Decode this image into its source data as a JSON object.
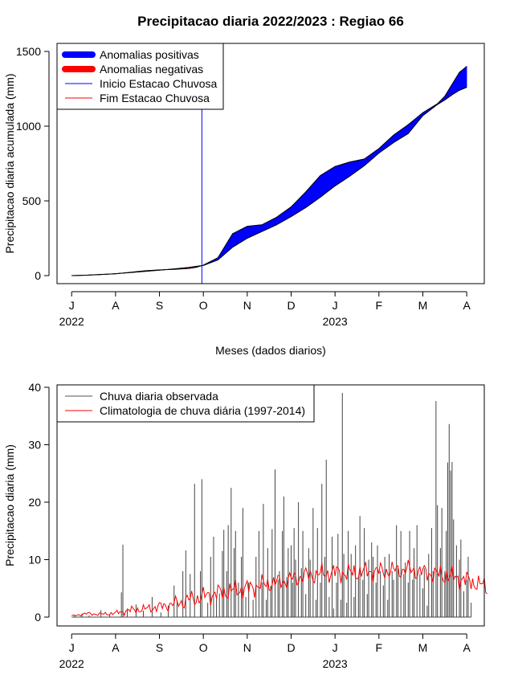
{
  "title": "Precipitacao diaria 2022/2023 : Regiao 66",
  "chart_data": [
    {
      "type": "area",
      "ylabel": "Precipitacao diaria acumulada (mm)",
      "xlabel": "Meses (dados diarios)",
      "x_ticks": [
        "J",
        "A",
        "S",
        "O",
        "N",
        "D",
        "J",
        "F",
        "M",
        "A"
      ],
      "year_labels": [
        "2022",
        "2023"
      ],
      "ylim": [
        0,
        1550
      ],
      "y_ticks": [
        0,
        500,
        1000,
        1500
      ],
      "legend_position": "top-left",
      "legend": [
        {
          "label": "Anomalias positivas",
          "color": "#0000ff",
          "style": "thick"
        },
        {
          "label": "Anomalias negativas",
          "color": "#ff0000",
          "style": "thick"
        },
        {
          "label": "Inicio Estacao Chuvosa",
          "color": "#0000ff",
          "style": "thin"
        },
        {
          "label": "Fim Estacao Chuvosa",
          "color": "#ff0000",
          "style": "thin"
        }
      ],
      "month_x": [
        0,
        30,
        60,
        90,
        120,
        150,
        180,
        210,
        240,
        270
      ],
      "rainy_season_start_day": 89,
      "series": [
        {
          "x": [
            0,
            10,
            20,
            30,
            40,
            50,
            60,
            70,
            80,
            85,
            90,
            100,
            110,
            120,
            130,
            140,
            150,
            160,
            170,
            180,
            190,
            200,
            210,
            220,
            230,
            240,
            250,
            255,
            260,
            265,
            270
          ],
          "observed": [
            0,
            3,
            8,
            12,
            22,
            32,
            38,
            42,
            48,
            55,
            70,
            120,
            280,
            330,
            340,
            390,
            460,
            560,
            670,
            730,
            760,
            780,
            850,
            940,
            1010,
            1090,
            1150,
            1200,
            1280,
            1360,
            1400
          ],
          "climatology": [
            0,
            3,
            7,
            13,
            20,
            28,
            36,
            45,
            55,
            62,
            68,
            105,
            190,
            250,
            295,
            340,
            395,
            455,
            525,
            600,
            665,
            735,
            820,
            890,
            950,
            1070,
            1145,
            1175,
            1210,
            1240,
            1260
          ]
        }
      ]
    },
    {
      "type": "bar",
      "ylabel": "Precipitacao diaria (mm)",
      "xlabel": "Meses (dados diarios)",
      "x_ticks": [
        "J",
        "A",
        "S",
        "O",
        "N",
        "D",
        "J",
        "F",
        "M",
        "A"
      ],
      "year_labels": [
        "2022",
        "2023"
      ],
      "ylim": [
        0,
        40
      ],
      "y_ticks": [
        0,
        10,
        20,
        30,
        40
      ],
      "legend_position": "top-left",
      "legend": [
        {
          "label": "Chuva diaria observada",
          "color": "#555555",
          "style": "thin"
        },
        {
          "label": "Climatologia de chuva diária (1997-2014)",
          "color": "#ff0000",
          "style": "thin"
        }
      ],
      "rain_days": [
        [
          2,
          0.4
        ],
        [
          7,
          0.6
        ],
        [
          12,
          0.3
        ],
        [
          20,
          1.2
        ],
        [
          26,
          0.5
        ],
        [
          34,
          4.3
        ],
        [
          35,
          12.6
        ],
        [
          38,
          1.5
        ],
        [
          44,
          2.2
        ],
        [
          49,
          1.1
        ],
        [
          55,
          3.5
        ],
        [
          61,
          0.8
        ],
        [
          66,
          2.0
        ],
        [
          70,
          5.5
        ],
        [
          72,
          3.0
        ],
        [
          76,
          8.0
        ],
        [
          78,
          11.6
        ],
        [
          81,
          7.5
        ],
        [
          84,
          23.2
        ],
        [
          88,
          8.0
        ],
        [
          89,
          24.0
        ],
        [
          93,
          2.5
        ],
        [
          95,
          10.5
        ],
        [
          97,
          14.0
        ],
        [
          99,
          3.5
        ],
        [
          101,
          4.1
        ],
        [
          103,
          11.5
        ],
        [
          104,
          15.2
        ],
        [
          106,
          8.0
        ],
        [
          107,
          16.0
        ],
        [
          109,
          22.5
        ],
        [
          111,
          12.0
        ],
        [
          112,
          15.0
        ],
        [
          114,
          6.0
        ],
        [
          116,
          10.5
        ],
        [
          117,
          19.0
        ],
        [
          119,
          3.5
        ],
        [
          121,
          6.0
        ],
        [
          124,
          3.0
        ],
        [
          126,
          10.5
        ],
        [
          128,
          15.0
        ],
        [
          130,
          6.0
        ],
        [
          131,
          19.7
        ],
        [
          133,
          3.0
        ],
        [
          134,
          12.0
        ],
        [
          136,
          5.5
        ],
        [
          137,
          15.3
        ],
        [
          139,
          25.7
        ],
        [
          141,
          6.5
        ],
        [
          142,
          8.0
        ],
        [
          144,
          15.0
        ],
        [
          145,
          21.0
        ],
        [
          147,
          7.0
        ],
        [
          148,
          12.0
        ],
        [
          150,
          12.5
        ],
        [
          151,
          6.0
        ],
        [
          152,
          15.5
        ],
        [
          153,
          10.0
        ],
        [
          155,
          20.0
        ],
        [
          157,
          8.5
        ],
        [
          158,
          15.0
        ],
        [
          160,
          4.0
        ],
        [
          162,
          12.0
        ],
        [
          163,
          10.0
        ],
        [
          165,
          19.0
        ],
        [
          167,
          3.0
        ],
        [
          168,
          15.5
        ],
        [
          170,
          6.0
        ],
        [
          171,
          23.2
        ],
        [
          173,
          10.5
        ],
        [
          174,
          27.4
        ],
        [
          176,
          3.5
        ],
        [
          178,
          14.0
        ],
        [
          179,
          1.5
        ],
        [
          181,
          6.0
        ],
        [
          182,
          14.5
        ],
        [
          184,
          3.0
        ],
        [
          185,
          39.0
        ],
        [
          186,
          11.0
        ],
        [
          188,
          2.5
        ],
        [
          189,
          15.0
        ],
        [
          191,
          11.0
        ],
        [
          193,
          3.5
        ],
        [
          194,
          12.5
        ],
        [
          196,
          7.0
        ],
        [
          197,
          17.6
        ],
        [
          199,
          6.5
        ],
        [
          200,
          15.5
        ],
        [
          202,
          4.0
        ],
        [
          203,
          10.0
        ],
        [
          205,
          13.0
        ],
        [
          206,
          10.5
        ],
        [
          208,
          6.0
        ],
        [
          209,
          12.5
        ],
        [
          211,
          8.0
        ],
        [
          213,
          5.5
        ],
        [
          214,
          10.5
        ],
        [
          216,
          3.0
        ],
        [
          217,
          11.0
        ],
        [
          219,
          8.0
        ],
        [
          220,
          6.5
        ],
        [
          222,
          16.0
        ],
        [
          223,
          8.5
        ],
        [
          225,
          15.0
        ],
        [
          227,
          7.5
        ],
        [
          228,
          9.5
        ],
        [
          230,
          6.0
        ],
        [
          231,
          15.0
        ],
        [
          233,
          6.5
        ],
        [
          234,
          12.0
        ],
        [
          236,
          16.0
        ],
        [
          238,
          7.5
        ],
        [
          240,
          5.0
        ],
        [
          241,
          8.5
        ],
        [
          243,
          2.0
        ],
        [
          244,
          11.0
        ],
        [
          246,
          15.5
        ],
        [
          247,
          8.0
        ],
        [
          249,
          37.6
        ],
        [
          250,
          19.5
        ],
        [
          252,
          12.0
        ],
        [
          253,
          19.0
        ],
        [
          255,
          8.0
        ],
        [
          256,
          15.0
        ],
        [
          257,
          26.9
        ],
        [
          258,
          33.6
        ],
        [
          259,
          25.5
        ],
        [
          260,
          27.0
        ],
        [
          261,
          17.0
        ],
        [
          263,
          12.5
        ],
        [
          265,
          10.0
        ],
        [
          266,
          13.5
        ],
        [
          268,
          4.5
        ],
        [
          270,
          6.5
        ],
        [
          271,
          10.5
        ],
        [
          273,
          2.5
        ]
      ],
      "climatology": [
        [
          0,
          0.2
        ],
        [
          10,
          0.6
        ],
        [
          20,
          0.5
        ],
        [
          30,
          0.7
        ],
        [
          40,
          1.2
        ],
        [
          50,
          1.4
        ],
        [
          60,
          1.8
        ],
        [
          70,
          2.3
        ],
        [
          80,
          3.0
        ],
        [
          90,
          3.6
        ],
        [
          100,
          4.2
        ],
        [
          110,
          4.6
        ],
        [
          120,
          5.0
        ],
        [
          130,
          5.6
        ],
        [
          140,
          6.0
        ],
        [
          150,
          6.6
        ],
        [
          160,
          7.2
        ],
        [
          170,
          7.5
        ],
        [
          180,
          7.8
        ],
        [
          190,
          7.6
        ],
        [
          200,
          7.9
        ],
        [
          210,
          8.0
        ],
        [
          220,
          8.1
        ],
        [
          230,
          8.3
        ],
        [
          240,
          7.8
        ],
        [
          250,
          7.4
        ],
        [
          260,
          7.0
        ],
        [
          270,
          6.4
        ],
        [
          280,
          5.6
        ],
        [
          284,
          5.0
        ]
      ]
    }
  ]
}
